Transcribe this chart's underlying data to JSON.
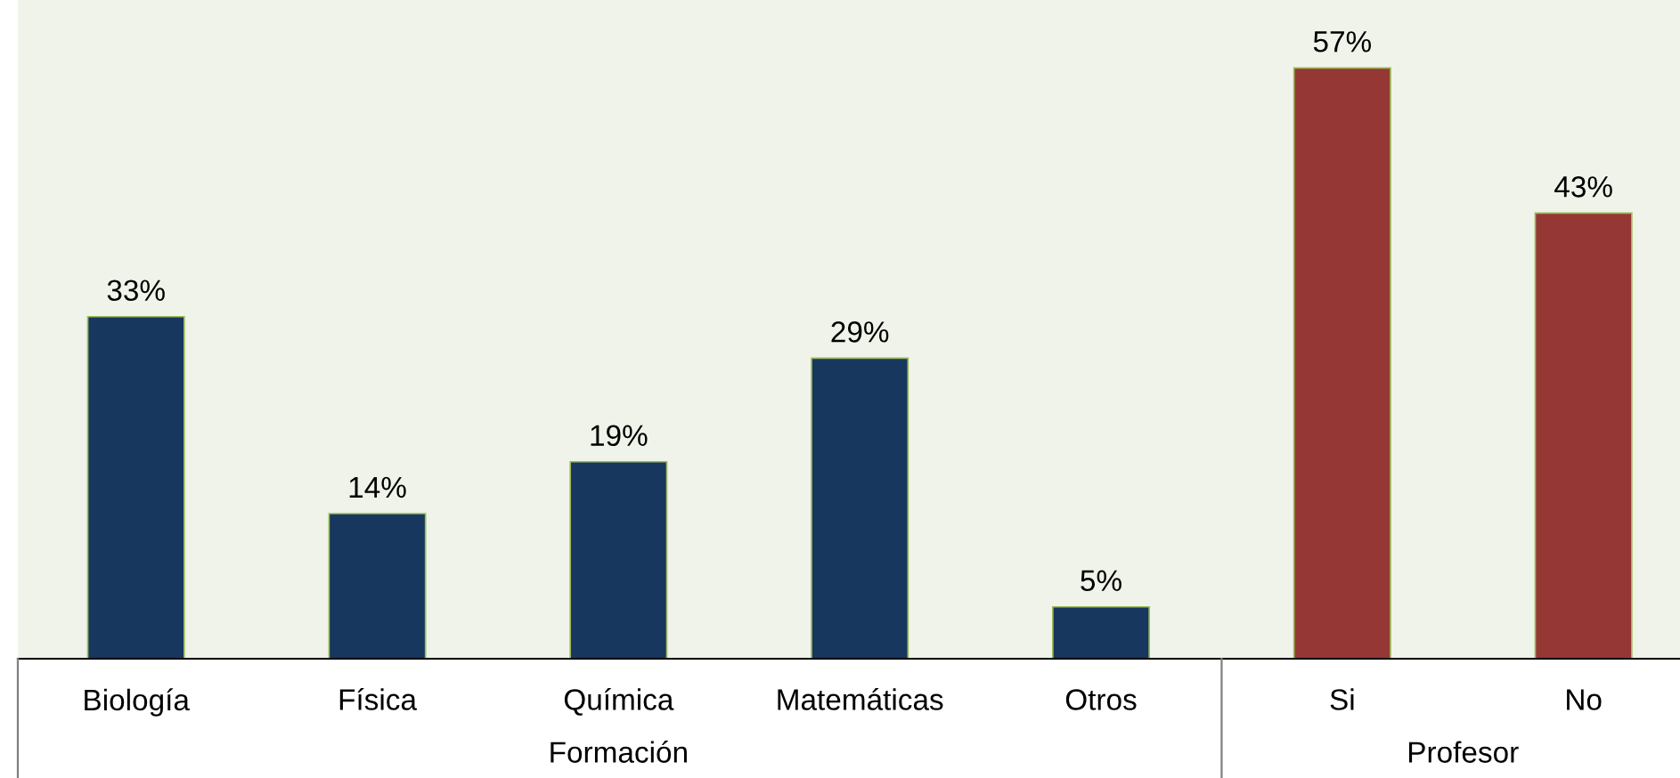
{
  "chart_data": {
    "type": "bar",
    "categories": [
      "Biología",
      "Física",
      "Química",
      "Matemáticas",
      "Otros",
      "Si",
      "No"
    ],
    "series": [
      {
        "name": "Formación",
        "color": "#17375e",
        "values": [
          33,
          14,
          19,
          29,
          5,
          null,
          null
        ],
        "value_labels": [
          "33%",
          "14%",
          "19%",
          "29%",
          "5%",
          null,
          null
        ]
      },
      {
        "name": "Profesor",
        "color": "#953735",
        "values": [
          null,
          null,
          null,
          null,
          null,
          57,
          43
        ],
        "value_labels": [
          null,
          null,
          null,
          null,
          null,
          "57%",
          "43%"
        ]
      }
    ],
    "grid": false,
    "legend": false
  }
}
